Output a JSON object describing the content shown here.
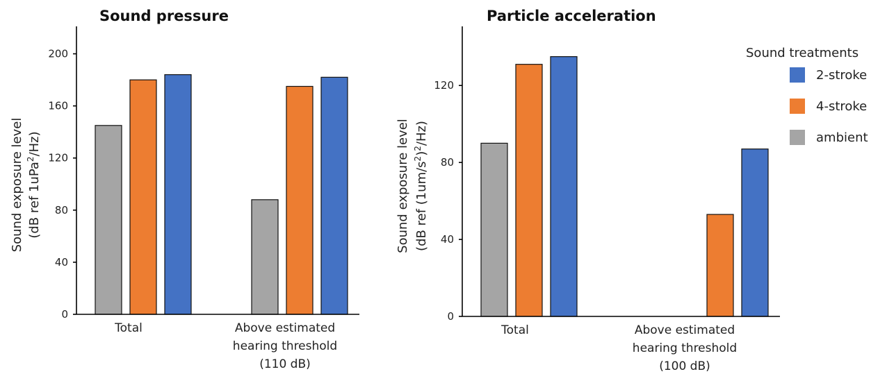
{
  "colors": {
    "2-stroke": "#4472c4",
    "4-stroke": "#ed7d31",
    "ambient": "#a5a5a5"
  },
  "legend": {
    "title": "Sound treatments",
    "placement": "right",
    "items": [
      "2-stroke",
      "4-stroke",
      "ambient"
    ]
  },
  "chart_data": [
    {
      "type": "bar",
      "title": "Sound pressure",
      "ylabel_line1": "Sound exposure level",
      "ylabel_line2_pre": "(dB ref 1uPa",
      "ylabel_line2_sup": "2",
      "ylabel_line2_post": "/Hz)",
      "ylim": [
        0,
        220
      ],
      "yticks": [
        0,
        40,
        80,
        120,
        160,
        200
      ],
      "categories": [
        [
          "Total"
        ],
        [
          "Above estimated",
          "hearing threshold",
          "(110 dB)"
        ]
      ],
      "series": [
        {
          "name": "ambient",
          "values": [
            145,
            88
          ]
        },
        {
          "name": "4-stroke",
          "values": [
            180,
            175
          ]
        },
        {
          "name": "2-stroke",
          "values": [
            184,
            182
          ]
        }
      ],
      "grid": false
    },
    {
      "type": "bar",
      "title": "Particle acceleration",
      "ylabel_line1": "Sound exposure level",
      "ylabel_line2_pre": "(dB ref (1um/s",
      "ylabel_line2_sup": "2",
      "ylabel_line2_post": ")",
      "ylabel_line2_sup2": "2",
      "ylabel_line2_post2": "/Hz)",
      "ylim": [
        0,
        150
      ],
      "yticks": [
        0,
        40,
        80,
        120
      ],
      "categories": [
        [
          "Total"
        ],
        [
          "Above estimated",
          "hearing threshold",
          "(100 dB)"
        ]
      ],
      "series": [
        {
          "name": "ambient",
          "values": [
            90,
            0
          ]
        },
        {
          "name": "4-stroke",
          "values": [
            131,
            53
          ]
        },
        {
          "name": "2-stroke",
          "values": [
            135,
            87
          ]
        }
      ],
      "grid": false
    }
  ]
}
